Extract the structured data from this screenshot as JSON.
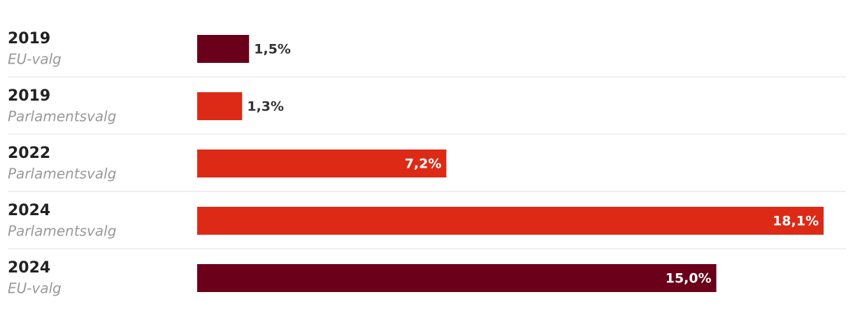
{
  "chart_data": {
    "type": "bar",
    "orientation": "horizontal",
    "categories": [
      "2019",
      "2019",
      "2022",
      "2024",
      "2024"
    ],
    "sublabels": [
      "EU-valg",
      "Parlamentsvalg",
      "Parlamentsvalg",
      "Parlamentsvalg",
      "EU-valg"
    ],
    "values": [
      1.5,
      1.3,
      7.2,
      18.1,
      15.0
    ],
    "value_labels": [
      "1,5%",
      "1,3%",
      "7,2%",
      "18,1%",
      "15,0%"
    ],
    "colors": [
      "#6a0019",
      "#dd2a17",
      "#dd2a17",
      "#dd2a17",
      "#6a0019"
    ]
  }
}
